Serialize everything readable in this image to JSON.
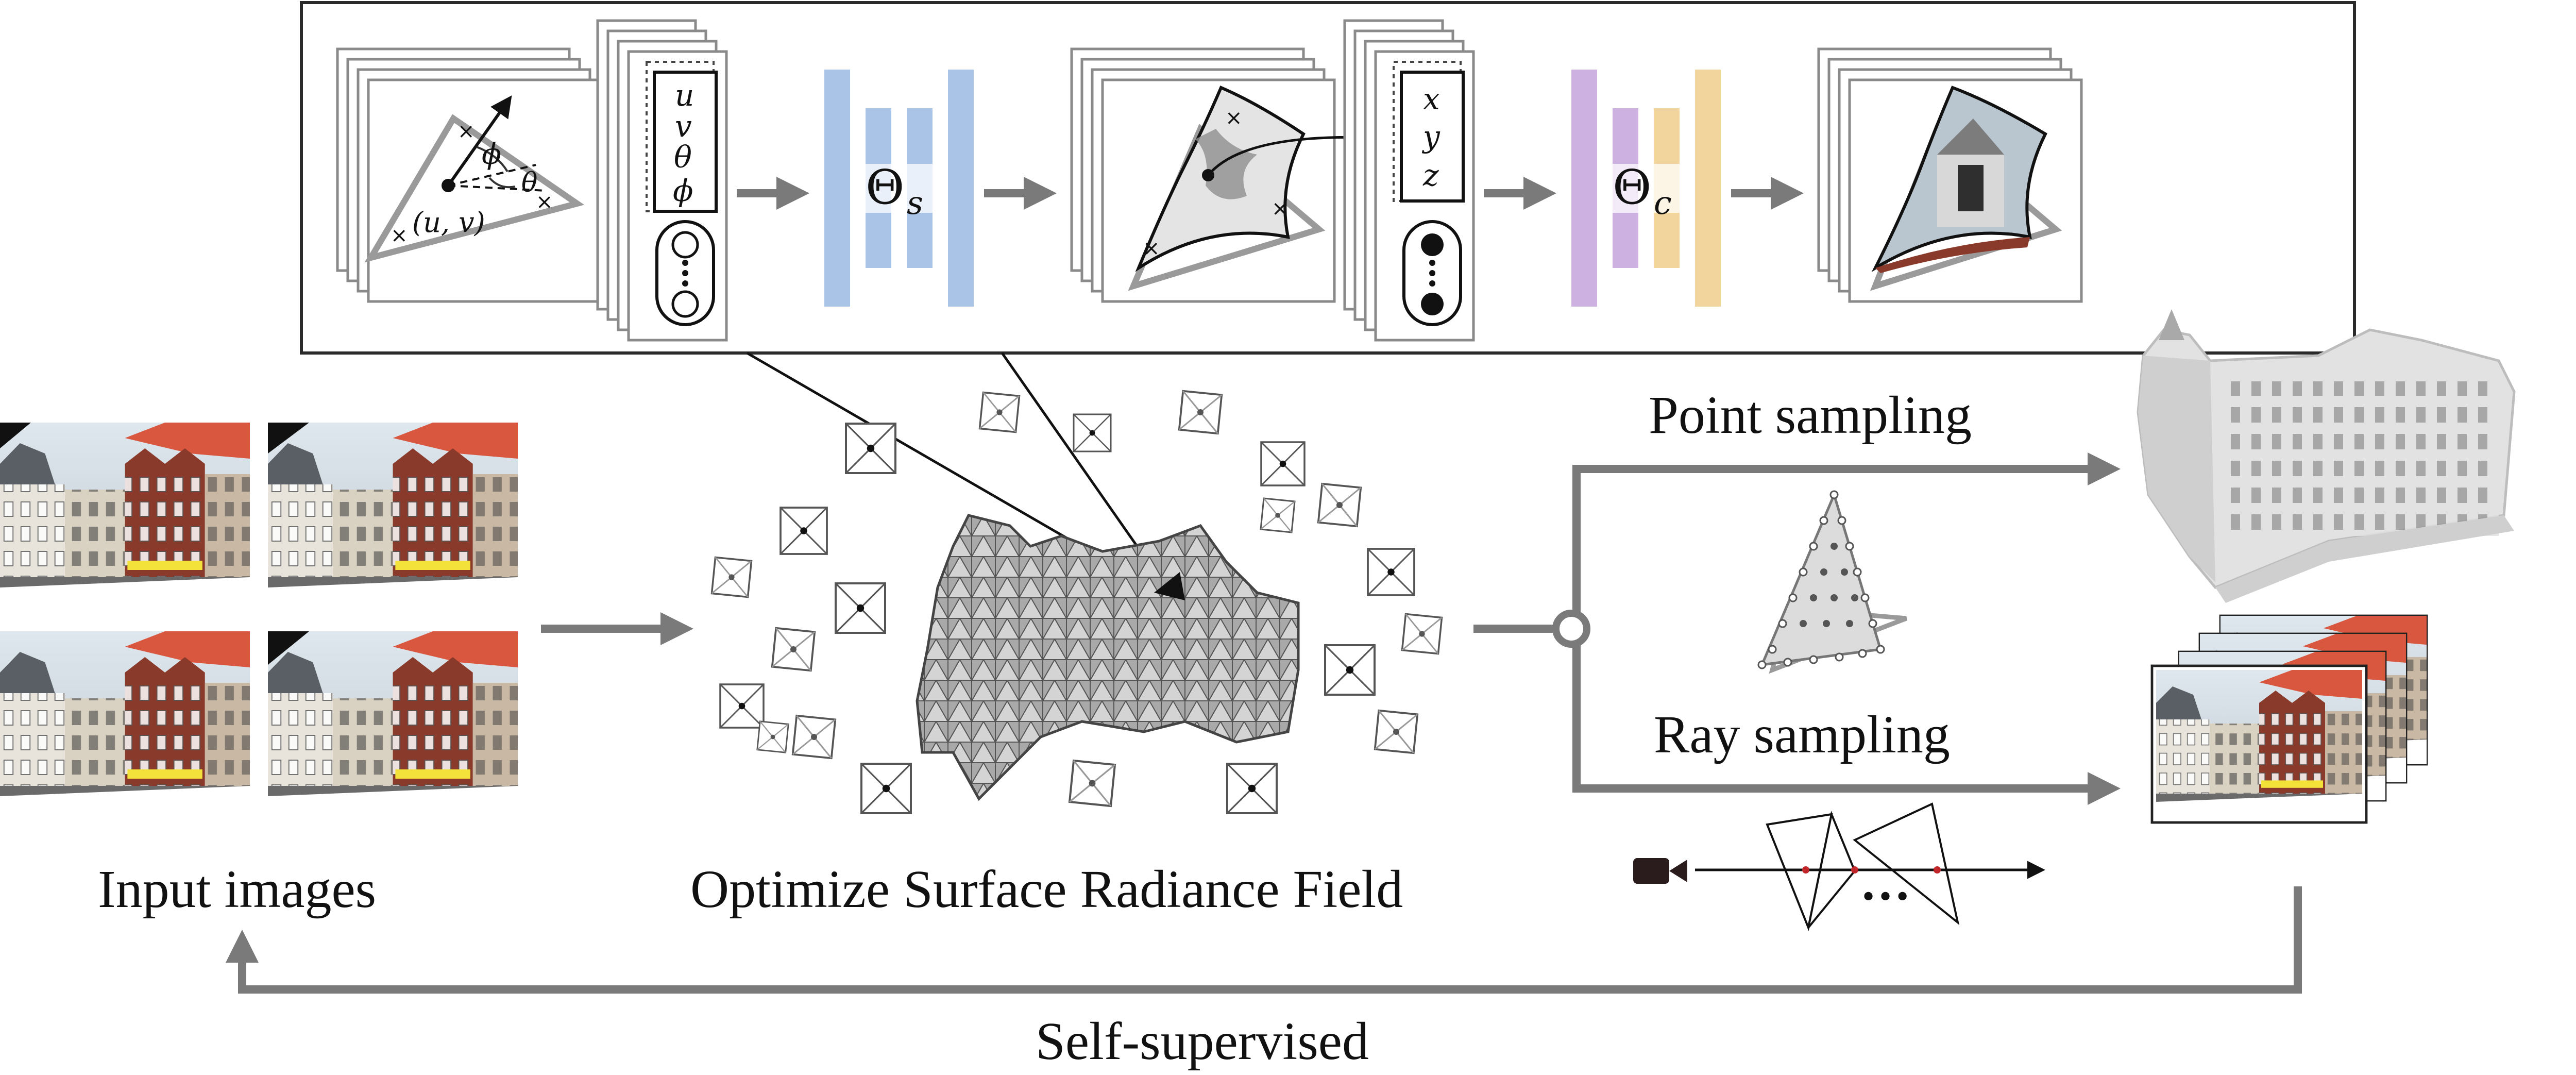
{
  "labels": {
    "input_images": "Input images",
    "optimize": "Optimize Surface Radiance Field",
    "point_sampling": "Point sampling",
    "ray_sampling": "Ray sampling",
    "self_supervised": "Self-supervised"
  },
  "network": {
    "uv": "(u, v)",
    "phi": "ϕ",
    "theta": "θ",
    "input_vars": [
      "u",
      "v",
      "θ",
      "ϕ"
    ],
    "theta_s_main": "Θ",
    "theta_s_sub": "s",
    "xyz_vars": [
      "x",
      "y",
      "z"
    ],
    "theta_c_main": "Θ",
    "theta_c_sub": "c",
    "ellipsis": "•••"
  },
  "colors": {
    "accent_blue": "#a9c4e6",
    "accent_purple": "#cdb1e0",
    "accent_yellow": "#f2d59c",
    "arrow_gray": "#7a7a7a",
    "roof_red": "#d9573f",
    "brick": "#8a3a2a",
    "awning_yellow": "#f3e23a",
    "ray_red": "#c0262a"
  },
  "icons": [
    "camera-icon",
    "marker-x-icon"
  ]
}
